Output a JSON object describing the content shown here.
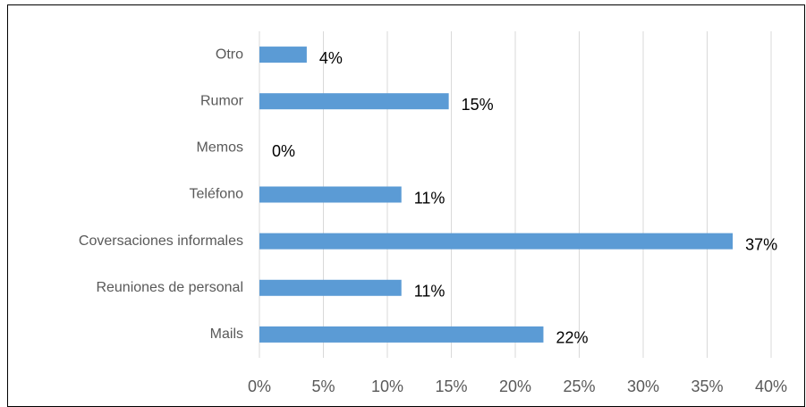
{
  "chart_data": {
    "type": "bar",
    "orientation": "horizontal",
    "categories": [
      "Otro",
      "Rumor",
      "Memos",
      "Teléfono",
      "Coversaciones informales",
      "Reuniones de personal",
      "Mails"
    ],
    "values": [
      3.7,
      14.8,
      0,
      11.1,
      37.0,
      11.1,
      22.2
    ],
    "value_labels": [
      "4%",
      "15%",
      "0%",
      "11%",
      "37%",
      "11%",
      "22%"
    ],
    "color": "#5b9bd5",
    "xlim": [
      0,
      40
    ],
    "xticks": [
      {
        "value": 0,
        "label": "0%"
      },
      {
        "value": 5,
        "label": "5%"
      },
      {
        "value": 10,
        "label": "10%"
      },
      {
        "value": 15,
        "label": "15%"
      },
      {
        "value": 20,
        "label": "20%"
      },
      {
        "value": 25,
        "label": "25%"
      },
      {
        "value": 30,
        "label": "30%"
      },
      {
        "value": 35,
        "label": "35%"
      },
      {
        "value": 40,
        "label": "40%"
      }
    ],
    "grid": true
  }
}
